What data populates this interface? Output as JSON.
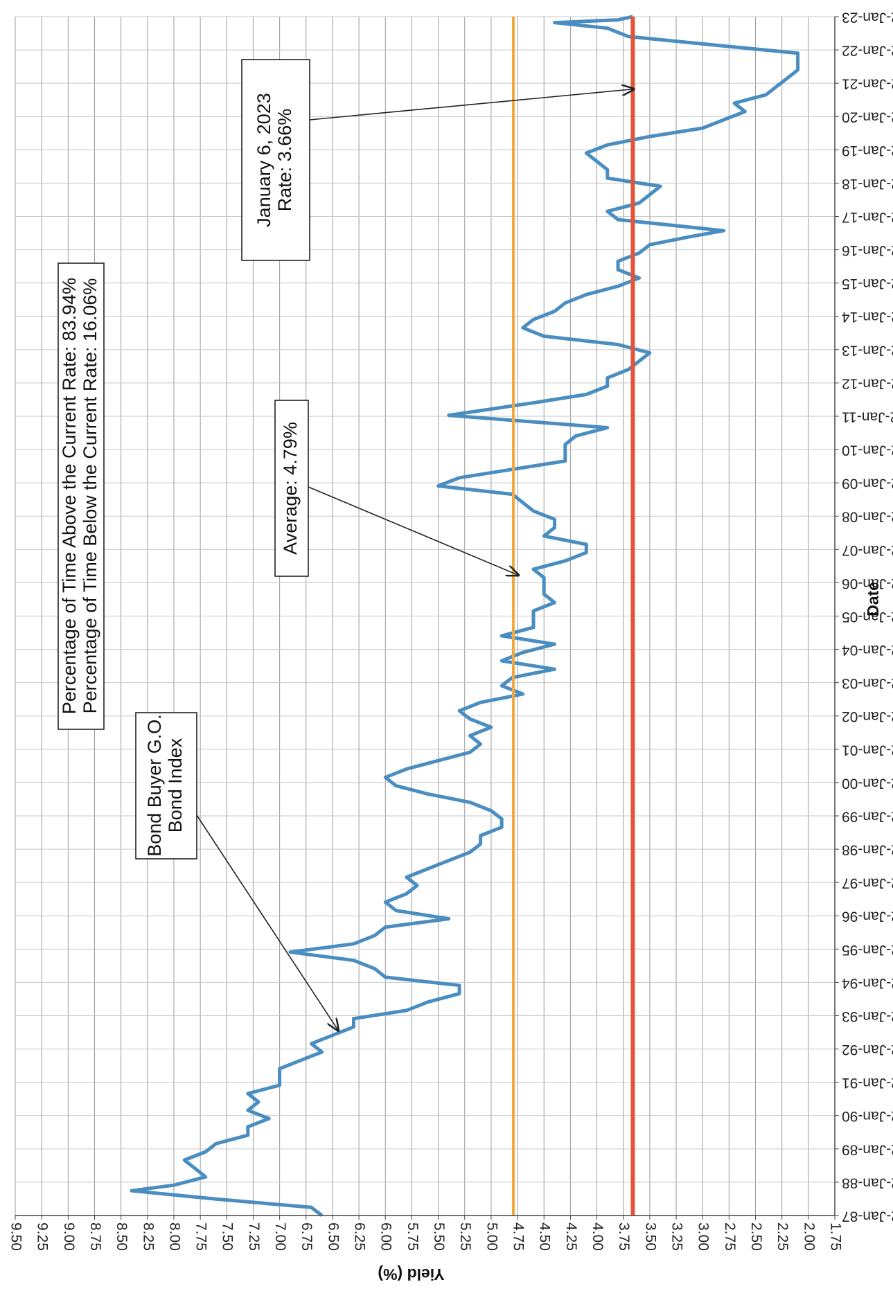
{
  "chart_data": {
    "type": "line",
    "title": "",
    "xlabel": "Date",
    "ylabel": "Yield (%)",
    "ylim": [
      1.75,
      9.5
    ],
    "y_ticks": [
      "1.75",
      "2.00",
      "2.25",
      "2.50",
      "2.75",
      "3.00",
      "3.25",
      "3.50",
      "3.75",
      "4.00",
      "4.25",
      "4.50",
      "4.75",
      "5.00",
      "5.25",
      "5.50",
      "5.75",
      "6.00",
      "6.25",
      "6.50",
      "6.75",
      "7.00",
      "7.25",
      "7.50",
      "7.75",
      "8.00",
      "8.25",
      "8.50",
      "8.75",
      "9.00",
      "9.25",
      "9.50"
    ],
    "x_ticks": [
      "2-Jan-87",
      "2-Jan-88",
      "2-Jan-89",
      "2-Jan-90",
      "2-Jan-91",
      "2-Jan-92",
      "2-Jan-93",
      "2-Jan-94",
      "2-Jan-95",
      "2-Jan-96",
      "2-Jan-97",
      "2-Jan-98",
      "2-Jan-99",
      "2-Jan-00",
      "2-Jan-01",
      "2-Jan-02",
      "2-Jan-03",
      "2-Jan-04",
      "2-Jan-05",
      "2-Jan-06",
      "2-Jan-07",
      "2-Jan-08",
      "2-Jan-09",
      "2-Jan-10",
      "2-Jan-11",
      "2-Jan-12",
      "2-Jan-13",
      "2-Jan-14",
      "2-Jan-15",
      "2-Jan-16",
      "2-Jan-17",
      "2-Jan-18",
      "2-Jan-19",
      "2-Jan-20",
      "2-Jan-21",
      "2-Jan-22",
      "2-Jan-23"
    ],
    "grid": true,
    "rotation": "rotated 90 degrees clockwise",
    "series": [
      {
        "name": "Bond Buyer G.O. Bond Index",
        "color": "#4a8dc0",
        "points": [
          [
            "1987-01-02",
            6.6
          ],
          [
            "1987-04-01",
            6.7
          ],
          [
            "1987-07-01",
            7.6
          ],
          [
            "1987-10-01",
            8.4
          ],
          [
            "1987-12-01",
            8.0
          ],
          [
            "1988-03-01",
            7.7
          ],
          [
            "1988-06-01",
            7.8
          ],
          [
            "1988-09-01",
            7.9
          ],
          [
            "1988-12-01",
            7.7
          ],
          [
            "1989-03-01",
            7.6
          ],
          [
            "1989-06-01",
            7.3
          ],
          [
            "1989-09-01",
            7.3
          ],
          [
            "1989-12-01",
            7.1
          ],
          [
            "1990-03-01",
            7.3
          ],
          [
            "1990-06-01",
            7.2
          ],
          [
            "1990-09-01",
            7.3
          ],
          [
            "1990-12-01",
            7.0
          ],
          [
            "1991-03-01",
            7.0
          ],
          [
            "1991-06-01",
            7.0
          ],
          [
            "1991-09-01",
            6.8
          ],
          [
            "1991-12-01",
            6.6
          ],
          [
            "1992-03-01",
            6.7
          ],
          [
            "1992-06-01",
            6.5
          ],
          [
            "1992-09-01",
            6.3
          ],
          [
            "1992-12-01",
            6.3
          ],
          [
            "1993-03-01",
            5.8
          ],
          [
            "1993-06-01",
            5.6
          ],
          [
            "1993-09-01",
            5.3
          ],
          [
            "1993-12-01",
            5.3
          ],
          [
            "1994-03-01",
            6.0
          ],
          [
            "1994-06-01",
            6.1
          ],
          [
            "1994-09-01",
            6.3
          ],
          [
            "1994-12-01",
            6.9
          ],
          [
            "1995-03-01",
            6.3
          ],
          [
            "1995-06-01",
            6.1
          ],
          [
            "1995-09-01",
            6.0
          ],
          [
            "1995-12-01",
            5.4
          ],
          [
            "1996-03-01",
            5.9
          ],
          [
            "1996-06-01",
            6.0
          ],
          [
            "1996-09-01",
            5.8
          ],
          [
            "1996-12-01",
            5.7
          ],
          [
            "1997-03-01",
            5.8
          ],
          [
            "1997-06-01",
            5.6
          ],
          [
            "1997-09-01",
            5.4
          ],
          [
            "1997-12-01",
            5.2
          ],
          [
            "1998-03-01",
            5.1
          ],
          [
            "1998-06-01",
            5.1
          ],
          [
            "1998-09-01",
            4.9
          ],
          [
            "1998-12-01",
            4.9
          ],
          [
            "1999-03-01",
            5.0
          ],
          [
            "1999-06-01",
            5.2
          ],
          [
            "1999-09-01",
            5.6
          ],
          [
            "1999-12-01",
            5.9
          ],
          [
            "2000-03-01",
            6.0
          ],
          [
            "2000-06-01",
            5.8
          ],
          [
            "2000-09-01",
            5.5
          ],
          [
            "2000-12-01",
            5.2
          ],
          [
            "2001-03-01",
            5.1
          ],
          [
            "2001-06-01",
            5.2
          ],
          [
            "2001-09-01",
            5.0
          ],
          [
            "2001-12-01",
            5.2
          ],
          [
            "2002-03-01",
            5.3
          ],
          [
            "2002-06-01",
            5.1
          ],
          [
            "2002-09-01",
            4.7
          ],
          [
            "2002-12-01",
            4.9
          ],
          [
            "2003-03-01",
            4.8
          ],
          [
            "2003-06-01",
            4.4
          ],
          [
            "2003-09-01",
            4.9
          ],
          [
            "2003-12-01",
            4.7
          ],
          [
            "2004-03-01",
            4.4
          ],
          [
            "2004-06-01",
            4.9
          ],
          [
            "2004-09-01",
            4.6
          ],
          [
            "2004-12-01",
            4.6
          ],
          [
            "2005-03-01",
            4.6
          ],
          [
            "2005-06-01",
            4.4
          ],
          [
            "2005-09-01",
            4.5
          ],
          [
            "2005-12-01",
            4.5
          ],
          [
            "2006-03-01",
            4.5
          ],
          [
            "2006-06-01",
            4.6
          ],
          [
            "2006-09-01",
            4.3
          ],
          [
            "2006-12-01",
            4.1
          ],
          [
            "2007-03-01",
            4.1
          ],
          [
            "2007-06-01",
            4.5
          ],
          [
            "2007-09-01",
            4.4
          ],
          [
            "2007-12-01",
            4.4
          ],
          [
            "2008-03-01",
            4.6
          ],
          [
            "2008-06-01",
            4.7
          ],
          [
            "2008-09-01",
            4.8
          ],
          [
            "2008-12-01",
            5.5
          ],
          [
            "2009-03-01",
            5.3
          ],
          [
            "2009-06-01",
            4.8
          ],
          [
            "2009-09-01",
            4.3
          ],
          [
            "2009-12-01",
            4.3
          ],
          [
            "2010-03-01",
            4.3
          ],
          [
            "2010-06-01",
            4.2
          ],
          [
            "2010-09-01",
            3.9
          ],
          [
            "2010-12-01",
            4.9
          ],
          [
            "2011-01-15",
            5.4
          ],
          [
            "2011-06-01",
            4.6
          ],
          [
            "2011-09-01",
            4.1
          ],
          [
            "2011-12-01",
            3.9
          ],
          [
            "2012-03-01",
            3.9
          ],
          [
            "2012-06-01",
            3.7
          ],
          [
            "2012-09-01",
            3.6
          ],
          [
            "2012-12-01",
            3.5
          ],
          [
            "2013-03-01",
            3.8
          ],
          [
            "2013-06-01",
            4.5
          ],
          [
            "2013-09-01",
            4.7
          ],
          [
            "2013-12-01",
            4.6
          ],
          [
            "2014-03-01",
            4.4
          ],
          [
            "2014-06-01",
            4.3
          ],
          [
            "2014-09-01",
            4.1
          ],
          [
            "2014-12-01",
            3.8
          ],
          [
            "2015-03-01",
            3.6
          ],
          [
            "2015-06-01",
            3.8
          ],
          [
            "2015-09-01",
            3.8
          ],
          [
            "2015-12-01",
            3.6
          ],
          [
            "2016-03-01",
            3.5
          ],
          [
            "2016-06-01",
            3.1
          ],
          [
            "2016-08-01",
            2.8
          ],
          [
            "2016-12-01",
            3.8
          ],
          [
            "2017-03-01",
            3.9
          ],
          [
            "2017-06-01",
            3.6
          ],
          [
            "2017-09-01",
            3.5
          ],
          [
            "2017-12-01",
            3.4
          ],
          [
            "2018-03-01",
            3.9
          ],
          [
            "2018-06-01",
            3.9
          ],
          [
            "2018-09-01",
            4.0
          ],
          [
            "2018-12-01",
            4.1
          ],
          [
            "2019-03-01",
            3.9
          ],
          [
            "2019-06-01",
            3.5
          ],
          [
            "2019-09-01",
            3.0
          ],
          [
            "2019-12-01",
            2.8
          ],
          [
            "2020-03-01",
            2.6
          ],
          [
            "2020-06-01",
            2.7
          ],
          [
            "2020-09-01",
            2.4
          ],
          [
            "2020-12-01",
            2.3
          ],
          [
            "2021-03-01",
            2.2
          ],
          [
            "2021-06-01",
            2.1
          ],
          [
            "2021-09-01",
            2.1
          ],
          [
            "2021-12-01",
            2.1
          ],
          [
            "2022-03-01",
            2.9
          ],
          [
            "2022-06-01",
            3.7
          ],
          [
            "2022-09-01",
            3.9
          ],
          [
            "2022-11-01",
            4.4
          ],
          [
            "2022-12-01",
            3.8
          ],
          [
            "2023-01-06",
            3.66
          ]
        ]
      },
      {
        "name": "",
        "type": "hline",
        "value": 4.79,
        "color": "#f0a93e"
      },
      {
        "name": "",
        "type": "hline",
        "value": 3.66,
        "color": "#e2553a"
      }
    ],
    "annotations": [
      {
        "lines": [
          "Percentage of Time Above the Current Rate: 83.94%",
          "Percentage of Time Below the Current Rate: 16.06%"
        ],
        "arrow": false
      },
      {
        "lines": [
          "Bond Buyer G.O.",
          "Bond Index"
        ],
        "arrow": true,
        "target": [
          "1992-08-01",
          6.45
        ]
      },
      {
        "lines": [
          "Average: 4.79%"
        ],
        "arrow": true,
        "target": [
          "2006-04-01",
          4.75
        ]
      },
      {
        "lines": [
          "January 6, 2023",
          "Rate: 3.66%"
        ],
        "arrow": true,
        "target": [
          "2020-11-01",
          3.66
        ]
      }
    ]
  }
}
